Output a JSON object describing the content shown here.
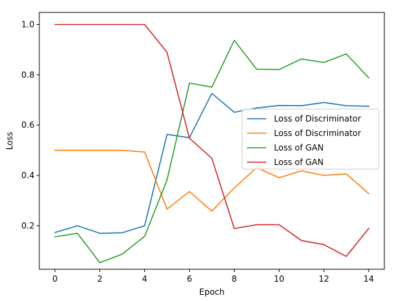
{
  "chart_data": {
    "type": "line",
    "xlabel": "Epoch",
    "ylabel": "Loss",
    "xlim": [
      -0.7,
      14.7
    ],
    "ylim": [
      0.027,
      1.048
    ],
    "xticks": [
      0,
      2,
      4,
      6,
      8,
      10,
      12,
      14
    ],
    "yticks": [
      0.2,
      0.4,
      0.6,
      0.8,
      1.0
    ],
    "xtick_labels": [
      "0",
      "2",
      "4",
      "6",
      "8",
      "10",
      "12",
      "14"
    ],
    "ytick_labels": [
      "0.2",
      "0.4",
      "0.6",
      "0.8",
      "1.0"
    ],
    "grid": false,
    "legend_position": "center-right",
    "x": [
      0,
      1,
      2,
      3,
      4,
      5,
      6,
      7,
      8,
      9,
      10,
      11,
      12,
      13,
      14
    ],
    "series": [
      {
        "name": "Loss of Discriminator",
        "color": "#1f77b4",
        "values": [
          0.173,
          0.2,
          0.17,
          0.172,
          0.2,
          0.563,
          0.55,
          0.726,
          0.651,
          0.668,
          0.678,
          0.677,
          0.69,
          0.677,
          0.675
        ]
      },
      {
        "name": "Loss of Discriminator",
        "color": "#ff7f0e",
        "values": [
          0.5,
          0.5,
          0.5,
          0.5,
          0.493,
          0.266,
          0.336,
          0.258,
          0.35,
          0.431,
          0.391,
          0.418,
          0.4,
          0.406,
          0.328
        ]
      },
      {
        "name": "Loss of GAN",
        "color": "#2ca02c",
        "values": [
          0.156,
          0.17,
          0.053,
          0.087,
          0.158,
          0.382,
          0.767,
          0.751,
          0.937,
          0.822,
          0.821,
          0.863,
          0.849,
          0.883,
          0.788
        ]
      },
      {
        "name": "Loss of GAN",
        "color": "#d62728",
        "values": [
          1.0,
          1.0,
          1.0,
          1.0,
          1.0,
          0.889,
          0.548,
          0.468,
          0.189,
          0.204,
          0.204,
          0.141,
          0.125,
          0.078,
          0.189
        ]
      }
    ]
  }
}
